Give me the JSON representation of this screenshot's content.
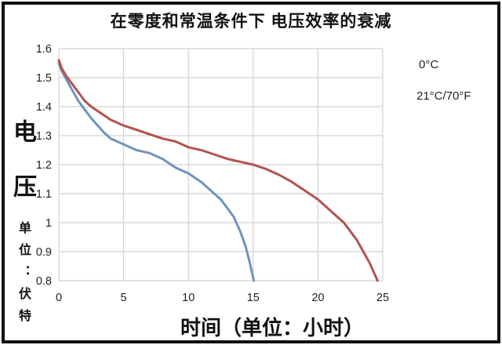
{
  "chart_data": {
    "type": "line",
    "title": "在零度和常温条件下 电压效率的衰减",
    "xlabel": "时间（单位：小时）",
    "ylabel_main": "电压",
    "ylabel_unit": "单位：伏特",
    "xlim": [
      0,
      25
    ],
    "ylim": [
      0.8,
      1.6
    ],
    "grid": true,
    "legend_position": "right",
    "xticks": [
      {
        "v": 0,
        "label": "0"
      },
      {
        "v": 5,
        "label": "5"
      },
      {
        "v": 10,
        "label": "10"
      },
      {
        "v": 15,
        "label": "15"
      },
      {
        "v": 20,
        "label": "20"
      },
      {
        "v": 25,
        "label": "25"
      }
    ],
    "yticks": [
      {
        "v": 1.6,
        "label": "1.6"
      },
      {
        "v": 1.5,
        "label": "1.5"
      },
      {
        "v": 1.4,
        "label": "1.4"
      },
      {
        "v": 1.3,
        "label": "1.3"
      },
      {
        "v": 1.2,
        "label": "1.2"
      },
      {
        "v": 1.1,
        "label": "1.1"
      },
      {
        "v": 1.0,
        "label": "1"
      },
      {
        "v": 0.9,
        "label": "0.9"
      },
      {
        "v": 0.8,
        "label": "0.8"
      }
    ],
    "series": [
      {
        "name": "0°C",
        "color": "#6E94BA",
        "x": [
          0,
          0.2,
          0.5,
          1,
          1.5,
          2,
          2.5,
          3,
          3.5,
          4,
          4.5,
          5,
          6,
          7,
          8,
          9,
          10,
          11,
          12,
          12.5,
          13,
          13.5,
          14,
          14.4,
          14.7,
          14.9,
          15,
          15.05
        ],
        "y": [
          1.55,
          1.525,
          1.5,
          1.46,
          1.42,
          1.39,
          1.36,
          1.335,
          1.31,
          1.29,
          1.28,
          1.27,
          1.25,
          1.24,
          1.22,
          1.19,
          1.17,
          1.14,
          1.1,
          1.08,
          1.05,
          1.02,
          0.97,
          0.92,
          0.87,
          0.83,
          0.81,
          0.8
        ]
      },
      {
        "name": "21°C/70°F",
        "color": "#B0544E",
        "x": [
          0,
          0.2,
          0.5,
          1,
          1.5,
          2,
          2.5,
          3,
          3.5,
          4,
          4.5,
          5,
          6,
          7,
          8,
          9,
          10,
          11,
          12,
          13,
          14,
          15,
          16,
          17,
          18,
          19,
          20,
          21,
          22,
          23,
          23.5,
          24,
          24.3,
          24.5,
          24.6
        ],
        "y": [
          1.56,
          1.535,
          1.51,
          1.48,
          1.45,
          1.42,
          1.4,
          1.385,
          1.37,
          1.355,
          1.345,
          1.335,
          1.32,
          1.305,
          1.29,
          1.28,
          1.26,
          1.25,
          1.235,
          1.22,
          1.21,
          1.2,
          1.185,
          1.165,
          1.14,
          1.11,
          1.08,
          1.04,
          1.0,
          0.94,
          0.9,
          0.86,
          0.83,
          0.81,
          0.8
        ]
      }
    ]
  }
}
